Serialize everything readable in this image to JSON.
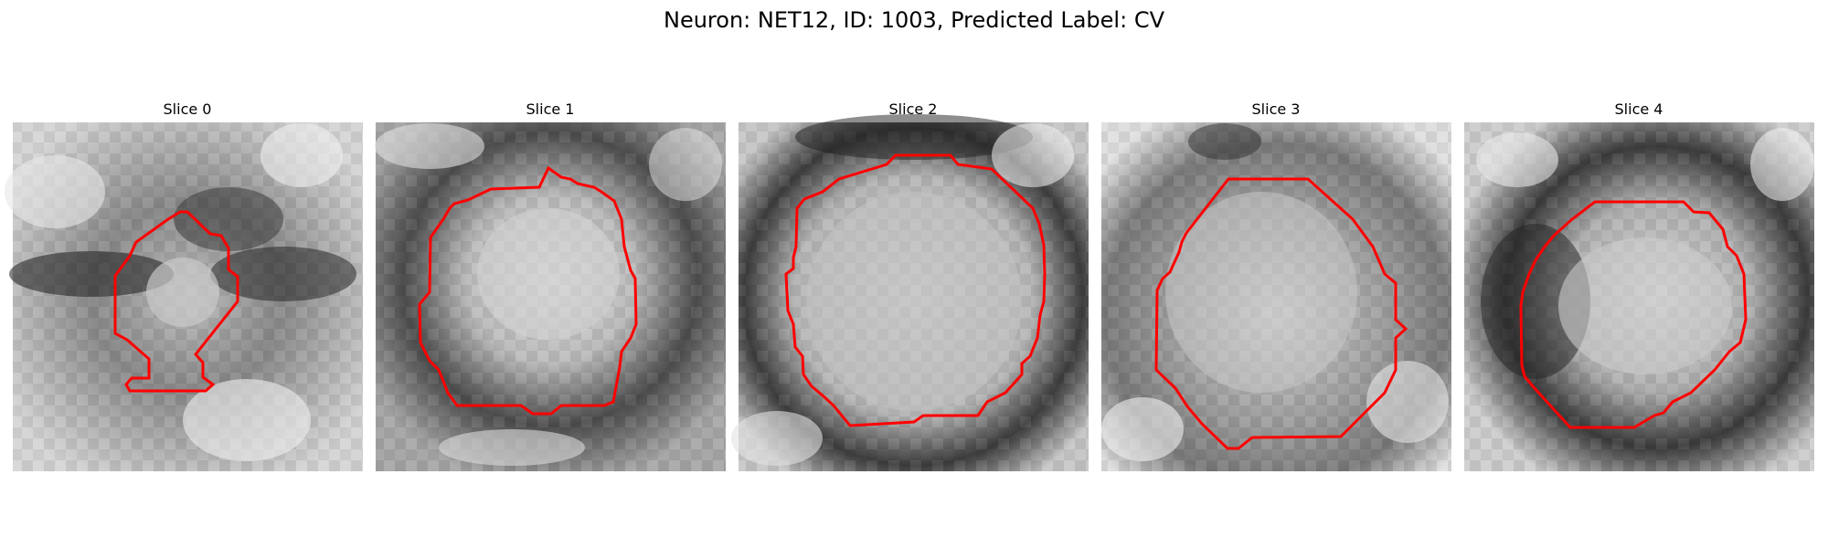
{
  "figure": {
    "title": "Neuron: NET12, ID: 1003, Predicted Label: CV",
    "contour_color": "#ff0000",
    "colormap": "grayscale",
    "panels": [
      {
        "title": "Slice 0"
      },
      {
        "title": "Slice 1"
      },
      {
        "title": "Slice 2"
      },
      {
        "title": "Slice 3"
      },
      {
        "title": "Slice 4"
      }
    ]
  }
}
